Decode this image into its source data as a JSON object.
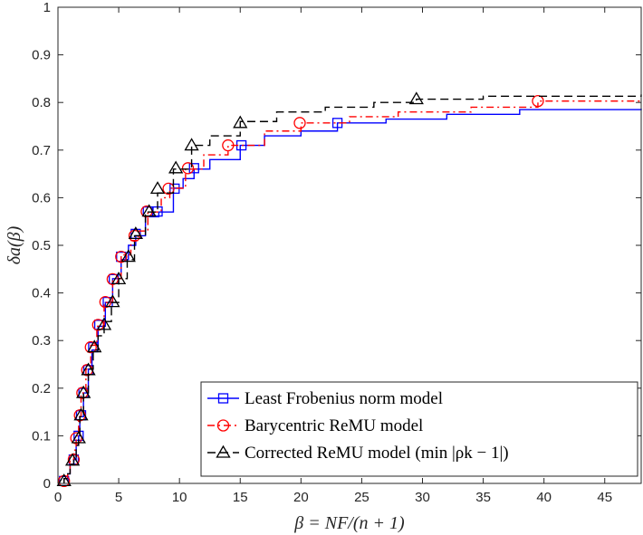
{
  "chart_data": {
    "type": "line",
    "title": "",
    "xlabel": "β = NF/(n + 1)",
    "ylabel": "δa(β)",
    "xlim": [
      0,
      48
    ],
    "ylim": [
      0,
      1
    ],
    "xticks": [
      0,
      5,
      10,
      15,
      20,
      25,
      30,
      35,
      40,
      45
    ],
    "yticks": [
      0,
      0.1,
      0.2,
      0.3,
      0.4,
      0.5,
      0.6,
      0.7,
      0.8,
      0.9,
      1
    ],
    "legend_position": "bottom-right",
    "series": [
      {
        "name": "Least Frobenius norm model",
        "color": "#0000ff",
        "line_style": "solid",
        "marker": "square",
        "points": [
          [
            0.5,
            0
          ],
          [
            0.5,
            0.01
          ],
          [
            0.8,
            0.02
          ],
          [
            1,
            0.04
          ],
          [
            1.3,
            0.05
          ],
          [
            1.5,
            0.08
          ],
          [
            1.7,
            0.1
          ],
          [
            1.8,
            0.14
          ],
          [
            2.1,
            0.19
          ],
          [
            2.5,
            0.24
          ],
          [
            2.8,
            0.28
          ],
          [
            3.3,
            0.33
          ],
          [
            3.9,
            0.38
          ],
          [
            4.5,
            0.43
          ],
          [
            5.2,
            0.47
          ],
          [
            5.8,
            0.5
          ],
          [
            6.4,
            0.52
          ],
          [
            7.2,
            0.56
          ],
          [
            8.3,
            0.57
          ],
          [
            9.5,
            0.62
          ],
          [
            10.3,
            0.64
          ],
          [
            11.2,
            0.66
          ],
          [
            12.5,
            0.68
          ],
          [
            15,
            0.71
          ],
          [
            17,
            0.73
          ],
          [
            20,
            0.74
          ],
          [
            23,
            0.757
          ],
          [
            27,
            0.765
          ],
          [
            32,
            0.775
          ],
          [
            38,
            0.785
          ],
          [
            48,
            0.787
          ]
        ],
        "markers": [
          [
            0.5,
            0.005
          ],
          [
            1.3,
            0.05
          ],
          [
            1.7,
            0.1
          ],
          [
            1.9,
            0.143
          ],
          [
            2.1,
            0.19
          ],
          [
            2.5,
            0.238
          ],
          [
            2.9,
            0.286
          ],
          [
            3.4,
            0.333
          ],
          [
            4.1,
            0.381
          ],
          [
            4.6,
            0.429
          ],
          [
            5.2,
            0.476
          ],
          [
            6.4,
            0.524
          ],
          [
            7.4,
            0.571
          ],
          [
            8.2,
            0.571
          ],
          [
            9.6,
            0.619
          ],
          [
            11.2,
            0.662
          ],
          [
            15.1,
            0.71
          ],
          [
            23,
            0.757
          ]
        ]
      },
      {
        "name": "Barycentric ReMU model",
        "color": "#ff0000",
        "line_style": "dash-dot",
        "marker": "circle",
        "points": [
          [
            0.5,
            0
          ],
          [
            0.5,
            0.01
          ],
          [
            0.8,
            0.02
          ],
          [
            1,
            0.05
          ],
          [
            1.3,
            0.07
          ],
          [
            1.5,
            0.1
          ],
          [
            1.7,
            0.14
          ],
          [
            1.9,
            0.19
          ],
          [
            2.3,
            0.24
          ],
          [
            2.7,
            0.29
          ],
          [
            3.2,
            0.33
          ],
          [
            3.8,
            0.38
          ],
          [
            4.5,
            0.43
          ],
          [
            5.2,
            0.48
          ],
          [
            6,
            0.51
          ],
          [
            6.6,
            0.53
          ],
          [
            7.4,
            0.57
          ],
          [
            8.5,
            0.6
          ],
          [
            9.2,
            0.62
          ],
          [
            10.5,
            0.66
          ],
          [
            12,
            0.69
          ],
          [
            14,
            0.71
          ],
          [
            17,
            0.74
          ],
          [
            20,
            0.757
          ],
          [
            24,
            0.77
          ],
          [
            28,
            0.78
          ],
          [
            34,
            0.79
          ],
          [
            39.5,
            0.803
          ],
          [
            48,
            0.805
          ]
        ],
        "markers": [
          [
            0.5,
            0.005
          ],
          [
            1.3,
            0.05
          ],
          [
            1.5,
            0.095
          ],
          [
            1.8,
            0.143
          ],
          [
            2,
            0.19
          ],
          [
            2.4,
            0.238
          ],
          [
            2.7,
            0.286
          ],
          [
            3.3,
            0.333
          ],
          [
            3.9,
            0.381
          ],
          [
            4.5,
            0.429
          ],
          [
            5.2,
            0.476
          ],
          [
            6.3,
            0.52
          ],
          [
            7.3,
            0.571
          ],
          [
            9.1,
            0.619
          ],
          [
            10.7,
            0.662
          ],
          [
            14,
            0.71
          ],
          [
            19.9,
            0.757
          ],
          [
            39.5,
            0.803
          ]
        ]
      },
      {
        "name": "Corrected ReMU model (min |ρk − 1|)",
        "color": "#000000",
        "line_style": "dashed",
        "marker": "triangle",
        "points": [
          [
            0.5,
            0
          ],
          [
            0.5,
            0.01
          ],
          [
            0.8,
            0.02
          ],
          [
            1,
            0.04
          ],
          [
            1.3,
            0.05
          ],
          [
            1.5,
            0.08
          ],
          [
            1.7,
            0.1
          ],
          [
            1.8,
            0.14
          ],
          [
            2.1,
            0.19
          ],
          [
            2.5,
            0.24
          ],
          [
            2.9,
            0.28
          ],
          [
            3.3,
            0.31
          ],
          [
            3.8,
            0.34
          ],
          [
            4.4,
            0.38
          ],
          [
            5,
            0.43
          ],
          [
            5.7,
            0.47
          ],
          [
            6.3,
            0.52
          ],
          [
            7.2,
            0.57
          ],
          [
            8.2,
            0.61
          ],
          [
            9.5,
            0.66
          ],
          [
            11,
            0.71
          ],
          [
            12.5,
            0.73
          ],
          [
            15,
            0.76
          ],
          [
            18,
            0.78
          ],
          [
            22,
            0.79
          ],
          [
            26,
            0.8
          ],
          [
            29.5,
            0.807
          ],
          [
            35,
            0.813
          ],
          [
            48,
            0.817
          ]
        ],
        "markers": [
          [
            0.5,
            0.005
          ],
          [
            1.2,
            0.048
          ],
          [
            1.7,
            0.095
          ],
          [
            1.9,
            0.143
          ],
          [
            2.1,
            0.19
          ],
          [
            2.5,
            0.238
          ],
          [
            3,
            0.286
          ],
          [
            3.8,
            0.333
          ],
          [
            4.5,
            0.381
          ],
          [
            5,
            0.429
          ],
          [
            5.8,
            0.476
          ],
          [
            6.4,
            0.524
          ],
          [
            7.5,
            0.571
          ],
          [
            8.2,
            0.619
          ],
          [
            9.7,
            0.662
          ],
          [
            11,
            0.71
          ],
          [
            15,
            0.757
          ],
          [
            29.5,
            0.807
          ]
        ]
      }
    ]
  }
}
